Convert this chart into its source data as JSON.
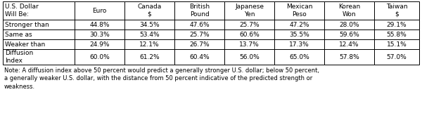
{
  "col_headers": [
    "U.S. Dollar\nWill Be:",
    "Euro",
    "Canada\n$",
    "British\nPound",
    "Japanese\nYen",
    "Mexican\nPeso",
    "Korean\nWon",
    "Taiwan\n$"
  ],
  "rows": [
    [
      "Stronger than",
      "44.8%",
      "34.5%",
      "47.6%",
      "25.7%",
      "47.2%",
      "28.0%",
      "29.1%"
    ],
    [
      "Same as",
      "30.3%",
      "53.4%",
      "25.7%",
      "60.6%",
      "35.5%",
      "59.6%",
      "55.8%"
    ],
    [
      "Weaker than",
      "24.9%",
      "12.1%",
      "26.7%",
      "13.7%",
      "17.3%",
      "12.4%",
      "15.1%"
    ],
    [
      "Diffusion\nIndex",
      "60.0%",
      "61.2%",
      "60.4%",
      "56.0%",
      "65.0%",
      "57.8%",
      "57.0%"
    ]
  ],
  "note": "Note: A diffusion index above 50 percent would predict a generally stronger U.S. dollar; below 50 percent,\na generally weaker U.S. dollar, with the distance from 50 percent indicative of the predicted strength or\nweakness.",
  "bg_color": "#ffffff",
  "border_color": "#000000",
  "text_color": "#000000",
  "col_widths_rel": [
    1.55,
    1.08,
    1.08,
    1.08,
    1.08,
    1.08,
    1.08,
    0.97
  ],
  "figure_width": 6.0,
  "figure_height": 1.68,
  "table_font_size": 6.5,
  "note_font_size": 6.0
}
